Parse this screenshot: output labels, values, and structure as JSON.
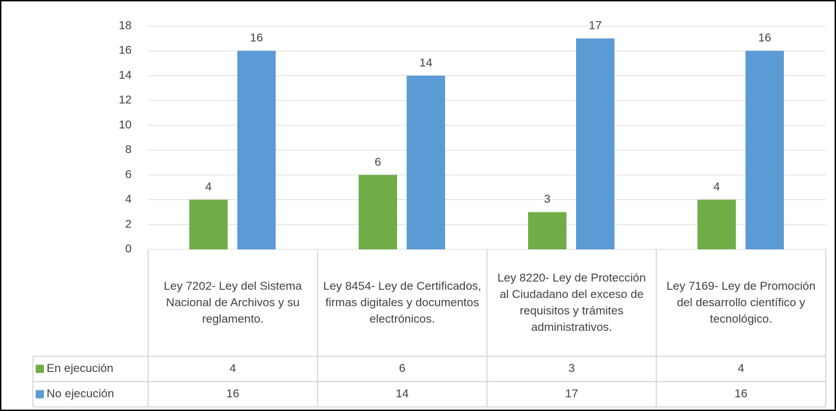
{
  "chart_data": {
    "type": "bar",
    "categories": [
      "Ley 7202- Ley del Sistema Nacional de Archivos y su reglamento.",
      "Ley 8454- Ley de Certificados, firmas digitales y documentos electrónicos.",
      "Ley 8220- Ley de Protección al Ciudadano del exceso de requisitos y trámites administrativos.",
      "Ley 7169- Ley de Promoción del desarrollo científico y tecnológico."
    ],
    "series": [
      {
        "name": "En ejecución",
        "color": "#70ad47",
        "values": [
          4,
          6,
          3,
          4
        ]
      },
      {
        "name": "No ejecución",
        "color": "#5b9bd5",
        "values": [
          16,
          14,
          17,
          16
        ]
      }
    ],
    "ylim": [
      0,
      18
    ],
    "yticks": [
      0,
      2,
      4,
      6,
      8,
      10,
      12,
      14,
      16,
      18
    ],
    "grid": true,
    "data_table": true
  }
}
